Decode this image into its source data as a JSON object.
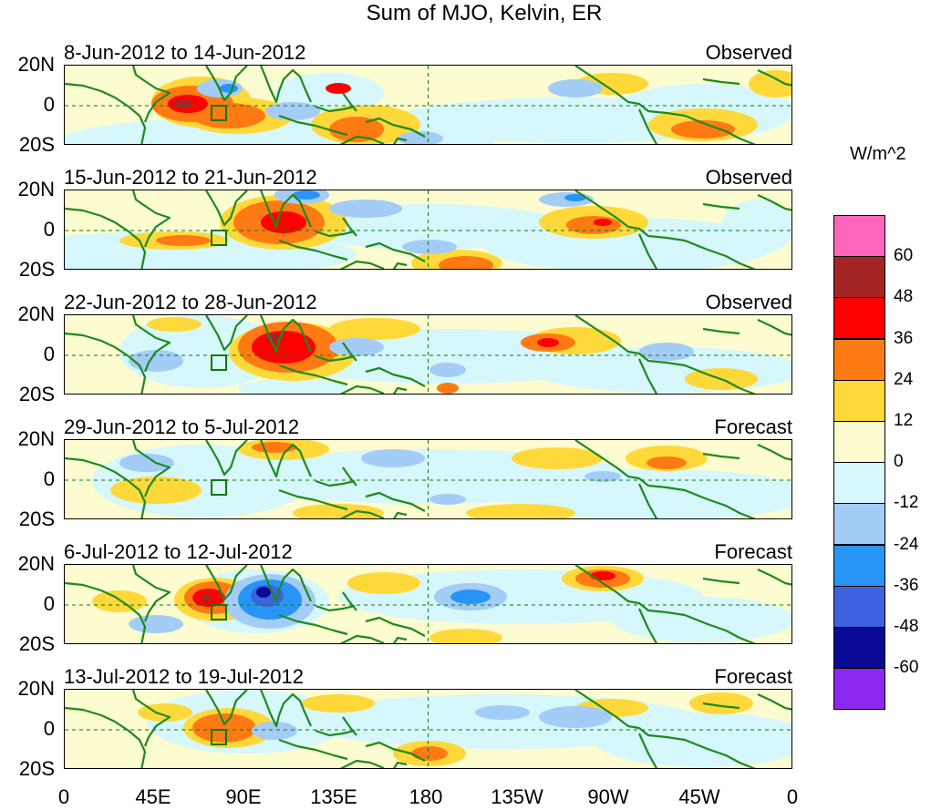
{
  "title": "Sum of MJO, Kelvin, ER",
  "panels": [
    {
      "date_range": "8-Jun-2012 to 14-Jun-2012",
      "status": "Observed"
    },
    {
      "date_range": "15-Jun-2012 to 21-Jun-2012",
      "status": "Observed"
    },
    {
      "date_range": "22-Jun-2012 to 28-Jun-2012",
      "status": "Observed"
    },
    {
      "date_range": "29-Jun-2012 to 5-Jul-2012",
      "status": "Forecast"
    },
    {
      "date_range": "6-Jul-2012 to 12-Jul-2012",
      "status": "Forecast"
    },
    {
      "date_range": "13-Jul-2012 to 19-Jul-2012",
      "status": "Forecast"
    }
  ],
  "lat_labels": [
    "20N",
    "0",
    "20S"
  ],
  "lon_labels": [
    "0",
    "45E",
    "90E",
    "135E",
    "180",
    "135W",
    "90W",
    "45W",
    "0"
  ],
  "colorbar": {
    "title": "W/m^2",
    "colors": [
      "#ff66bb",
      "#a52525",
      "#ff0000",
      "#ff7a12",
      "#ffd83a",
      "#fdfbd0",
      "#d6f7fb",
      "#a3ccf7",
      "#2895f6",
      "#3d62e0",
      "#0a0a96",
      "#8b29f0"
    ],
    "labels": [
      "60",
      "48",
      "36",
      "24",
      "12",
      "0",
      "-12",
      "-24",
      "-36",
      "-48",
      "-60"
    ]
  },
  "map_colors": {
    "coast": "#1e8a1e",
    "box": "#0a7a0a"
  }
}
